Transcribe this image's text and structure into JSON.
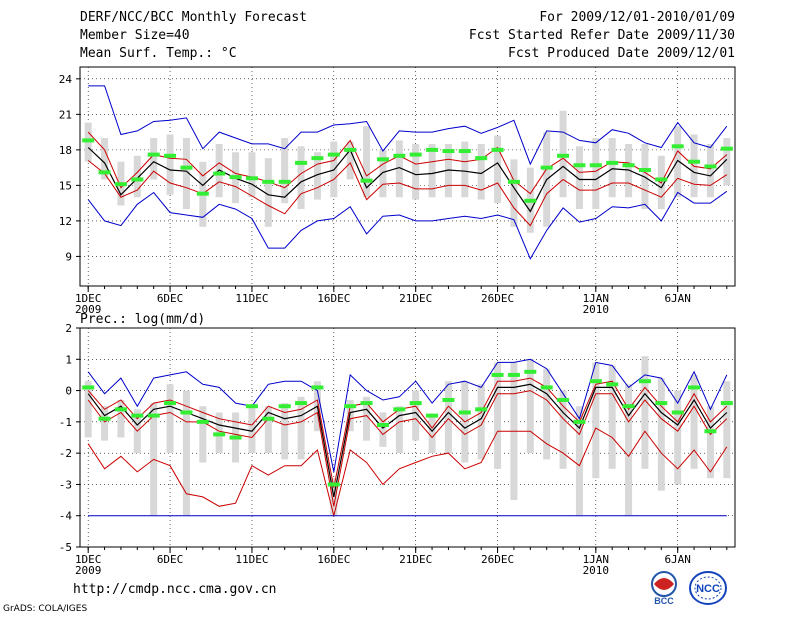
{
  "header": {
    "title": "DERF/NCC/BCC Monthly Forecast",
    "member_size": "Member Size=40",
    "variable": "Mean Surf. Temp.: °C",
    "period": "For 2009/12/01-2010/01/09",
    "start_date": "Fcst Started Refer Date 2009/11/30",
    "produced_date": "Fcst Produced Date 2009/12/01"
  },
  "footer": {
    "url": "http://cmdp.ncc.cma.gov.cn",
    "credit": "GrADS: COLA/IGES",
    "logo_bcc_text": "BCC",
    "logo_ncc_text": "NCC"
  },
  "colors": {
    "mean": "#000000",
    "spread": "#cc0000",
    "extreme": "#0000cc",
    "members": "#d8d8d8",
    "obs": "#33ee33",
    "grid": "#000000"
  },
  "chart_data": [
    {
      "type": "line",
      "title": "Mean Surf. Temp.: °C",
      "xlabel": "",
      "ylabel": "",
      "ylim": [
        6.5,
        25
      ],
      "yticks": [
        9,
        12,
        15,
        18,
        21,
        24
      ],
      "x": [
        1,
        2,
        3,
        4,
        5,
        6,
        7,
        8,
        9,
        10,
        11,
        12,
        13,
        14,
        15,
        16,
        17,
        18,
        19,
        20,
        21,
        22,
        23,
        24,
        25,
        26,
        27,
        28,
        29,
        30,
        31,
        32,
        33,
        34,
        35,
        36,
        37,
        38,
        39,
        40
      ],
      "xticks": [
        {
          "day": 1,
          "label": "1DEC",
          "sub": "2009"
        },
        {
          "day": 6,
          "label": "6DEC",
          "sub": ""
        },
        {
          "day": 11,
          "label": "11DEC",
          "sub": ""
        },
        {
          "day": 16,
          "label": "16DEC",
          "sub": ""
        },
        {
          "day": 21,
          "label": "21DEC",
          "sub": ""
        },
        {
          "day": 26,
          "label": "26DEC",
          "sub": ""
        },
        {
          "day": 32,
          "label": "1JAN",
          "sub": "2010"
        },
        {
          "day": 37,
          "label": "6JAN",
          "sub": ""
        }
      ],
      "series": [
        {
          "name": "max",
          "style": "extreme",
          "values": [
            23.4,
            23.4,
            19.3,
            19.6,
            20.4,
            20.5,
            20.7,
            18.1,
            19.5,
            19.0,
            18.5,
            18.5,
            18.1,
            19.5,
            19.5,
            20.1,
            20.2,
            20.4,
            17.9,
            19.6,
            19.5,
            19.5,
            19.8,
            20.0,
            19.4,
            19.9,
            20.5,
            16.8,
            19.6,
            19.5,
            18.8,
            18.6,
            19.7,
            19.4,
            18.6,
            18.2,
            20.3,
            18.6,
            18.2,
            20.0
          ]
        },
        {
          "name": "upper",
          "style": "spread",
          "values": [
            19.5,
            18.0,
            14.8,
            16.1,
            17.6,
            17.3,
            17.2,
            15.8,
            16.9,
            16.0,
            15.7,
            15.3,
            14.8,
            16.0,
            16.8,
            17.1,
            18.8,
            15.8,
            16.8,
            17.5,
            16.8,
            17.0,
            17.2,
            17.0,
            17.2,
            18.2,
            15.4,
            14.3,
            16.4,
            17.3,
            16.1,
            16.2,
            17.0,
            16.9,
            16.1,
            15.2,
            17.9,
            16.6,
            16.4,
            17.6
          ]
        },
        {
          "name": "mean",
          "style": "mean",
          "values": [
            18.2,
            16.9,
            14.2,
            15.6,
            17.0,
            16.3,
            16.2,
            15.0,
            16.3,
            15.6,
            15.1,
            14.2,
            14.0,
            15.3,
            15.9,
            16.3,
            18.0,
            14.8,
            16.1,
            16.5,
            15.9,
            16.0,
            16.3,
            16.2,
            16.0,
            16.9,
            14.8,
            12.8,
            15.5,
            16.6,
            15.5,
            15.5,
            16.4,
            16.3,
            15.7,
            14.8,
            17.1,
            16.1,
            15.8,
            17.2
          ]
        },
        {
          "name": "lower",
          "style": "spread",
          "values": [
            17.1,
            16.0,
            14.0,
            14.6,
            16.2,
            15.2,
            14.8,
            14.3,
            15.3,
            14.9,
            14.1,
            13.3,
            12.6,
            14.3,
            14.8,
            15.5,
            16.9,
            13.8,
            15.1,
            15.2,
            14.7,
            14.7,
            15.0,
            15.0,
            14.6,
            15.2,
            13.1,
            11.6,
            14.3,
            15.5,
            14.6,
            14.6,
            15.2,
            15.2,
            14.6,
            14.0,
            15.6,
            15.1,
            15.0,
            15.9
          ]
        },
        {
          "name": "min",
          "style": "extreme",
          "values": [
            13.8,
            12.0,
            11.6,
            13.4,
            14.4,
            12.7,
            12.5,
            12.3,
            13.4,
            13.0,
            12.2,
            9.7,
            9.7,
            11.2,
            12.0,
            12.2,
            13.2,
            10.9,
            12.4,
            12.5,
            12.0,
            12.0,
            12.2,
            12.4,
            12.2,
            12.5,
            12.1,
            8.8,
            11.2,
            13.1,
            11.9,
            12.2,
            13.2,
            13.1,
            13.4,
            12.0,
            14.4,
            13.5,
            13.5,
            14.5
          ]
        },
        {
          "name": "observed",
          "style": "obs",
          "values": [
            18.8,
            16.1,
            15.1,
            15.5,
            17.6,
            17.5,
            16.5,
            14.3,
            16.0,
            15.7,
            15.6,
            15.3,
            15.3,
            16.9,
            17.3,
            17.6,
            18.0,
            15.4,
            17.2,
            17.5,
            17.6,
            18.0,
            17.9,
            17.9,
            17.3,
            18.0,
            15.3,
            13.7,
            16.5,
            17.5,
            16.7,
            16.7,
            16.9,
            16.7,
            16.3,
            15.5,
            18.3,
            17.0,
            16.6,
            18.1
          ]
        },
        {
          "name": "member_box_high",
          "style": "members",
          "values": [
            20.3,
            19.0,
            17.0,
            17.5,
            19.0,
            19.3,
            19.0,
            17.0,
            18.5,
            17.8,
            17.8,
            17.3,
            19.0,
            18.3,
            17.8,
            18.7,
            18.7,
            20.0,
            18.0,
            18.8,
            18.5,
            18.5,
            18.5,
            18.7,
            18.5,
            19.2,
            17.2,
            16.5,
            19.5,
            21.3,
            18.3,
            19.0,
            19.0,
            18.5,
            18.5,
            17.5,
            20.0,
            19.3,
            18.5,
            19.0
          ]
        },
        {
          "name": "member_box_low",
          "style": "members",
          "values": [
            17.0,
            15.5,
            13.3,
            14.0,
            15.5,
            14.2,
            13.0,
            11.5,
            14.0,
            13.5,
            14.0,
            11.5,
            13.5,
            13.0,
            13.8,
            14.0,
            15.5,
            14.0,
            14.0,
            14.0,
            13.8,
            14.0,
            14.0,
            14.0,
            13.8,
            13.5,
            11.5,
            11.0,
            11.5,
            14.0,
            13.0,
            13.0,
            14.0,
            14.0,
            13.0,
            13.0,
            14.0,
            14.0,
            14.0,
            15.0
          ]
        }
      ]
    },
    {
      "type": "line",
      "title": "Prec.: log(mm/d)",
      "xlabel": "",
      "ylabel": "",
      "ylim": [
        -5,
        2
      ],
      "yticks": [
        -5,
        -4,
        -3,
        -2,
        -1,
        0,
        1,
        2
      ],
      "x": [
        1,
        2,
        3,
        4,
        5,
        6,
        7,
        8,
        9,
        10,
        11,
        12,
        13,
        14,
        15,
        16,
        17,
        18,
        19,
        20,
        21,
        22,
        23,
        24,
        25,
        26,
        27,
        28,
        29,
        30,
        31,
        32,
        33,
        34,
        35,
        36,
        37,
        38,
        39,
        40
      ],
      "xticks": [
        {
          "day": 1,
          "label": "1DEC",
          "sub": "2009"
        },
        {
          "day": 6,
          "label": "6DEC",
          "sub": ""
        },
        {
          "day": 11,
          "label": "11DEC",
          "sub": ""
        },
        {
          "day": 16,
          "label": "16DEC",
          "sub": ""
        },
        {
          "day": 21,
          "label": "21DEC",
          "sub": ""
        },
        {
          "day": 26,
          "label": "26DEC",
          "sub": ""
        },
        {
          "day": 32,
          "label": "1JAN",
          "sub": "2010"
        },
        {
          "day": 37,
          "label": "6JAN",
          "sub": ""
        }
      ],
      "series": [
        {
          "name": "max",
          "style": "extreme",
          "values": [
            0.6,
            -0.1,
            0.4,
            -0.5,
            0.4,
            0.5,
            0.6,
            0.2,
            0.1,
            -0.4,
            -0.5,
            0.2,
            0.3,
            0.3,
            0.0,
            -2.6,
            0.5,
            0.0,
            -0.3,
            -0.2,
            0.3,
            -0.4,
            0.2,
            0.3,
            0.1,
            0.9,
            0.9,
            1.0,
            0.7,
            -0.1,
            -0.9,
            0.9,
            0.8,
            0.1,
            0.5,
            0.4,
            -0.4,
            0.6,
            -0.6,
            0.5
          ]
        },
        {
          "name": "upper",
          "style": "spread",
          "values": [
            0.0,
            -0.6,
            -0.3,
            -0.9,
            -0.4,
            -0.3,
            -0.5,
            -0.7,
            -0.9,
            -1.0,
            -1.1,
            -0.5,
            -0.7,
            -0.6,
            -0.3,
            -3.1,
            -0.5,
            -0.4,
            -1.0,
            -0.6,
            -0.5,
            -1.2,
            -0.5,
            -1.0,
            -0.7,
            0.3,
            0.3,
            0.4,
            0.1,
            -0.5,
            -1.0,
            0.2,
            0.3,
            -0.6,
            0.1,
            -0.5,
            -1.0,
            -0.1,
            -1.0,
            -0.5
          ]
        },
        {
          "name": "mean",
          "style": "mean",
          "values": [
            -0.1,
            -0.8,
            -0.5,
            -1.1,
            -0.6,
            -0.5,
            -0.7,
            -0.9,
            -1.1,
            -1.2,
            -1.3,
            -0.7,
            -0.9,
            -0.8,
            -0.5,
            -3.4,
            -0.7,
            -0.6,
            -1.2,
            -0.8,
            -0.7,
            -1.3,
            -0.7,
            -1.2,
            -0.9,
            0.1,
            0.1,
            0.2,
            -0.1,
            -0.7,
            -1.2,
            0.1,
            0.1,
            -0.8,
            -0.1,
            -0.7,
            -1.1,
            -0.3,
            -1.2,
            -0.7
          ]
        },
        {
          "name": "lower",
          "style": "spread",
          "values": [
            -0.3,
            -1.0,
            -0.7,
            -1.3,
            -0.8,
            -0.7,
            -1.0,
            -1.0,
            -1.3,
            -1.4,
            -1.5,
            -0.9,
            -1.1,
            -1.0,
            -0.7,
            -3.7,
            -0.9,
            -0.8,
            -1.4,
            -1.0,
            -0.9,
            -1.5,
            -0.9,
            -1.4,
            -1.1,
            -0.1,
            -0.1,
            0.0,
            -0.3,
            -0.9,
            -1.4,
            -0.1,
            -0.1,
            -1.0,
            -0.3,
            -0.9,
            -1.3,
            -0.5,
            -1.4,
            -0.9
          ]
        },
        {
          "name": "min",
          "style": "spread",
          "values": [
            -1.7,
            -2.5,
            -2.1,
            -2.6,
            -2.2,
            -2.4,
            -3.3,
            -3.4,
            -3.7,
            -3.6,
            -2.4,
            -2.7,
            -2.4,
            -2.4,
            -1.9,
            -4.0,
            -1.9,
            -2.3,
            -3.0,
            -2.5,
            -2.3,
            -2.1,
            -2.0,
            -2.5,
            -2.3,
            -1.3,
            -1.3,
            -1.3,
            -1.7,
            -2.0,
            -2.4,
            -1.2,
            -1.5,
            -2.1,
            -1.3,
            -2.0,
            -2.5,
            -1.9,
            -2.6,
            -1.8
          ]
        },
        {
          "name": "floor",
          "style": "extreme",
          "values": [
            -4,
            -4,
            -4,
            -4,
            -4,
            -4,
            -4,
            -4,
            -4,
            -4,
            -4,
            -4,
            -4,
            -4,
            -4,
            -4,
            -4,
            -4,
            -4,
            -4,
            -4,
            -4,
            -4,
            -4,
            -4,
            -4,
            -4,
            -4,
            -4,
            -4,
            -4,
            -4,
            -4,
            -4,
            -4,
            -4,
            -4,
            -4,
            -4,
            -4
          ]
        },
        {
          "name": "observed",
          "style": "obs",
          "values": [
            0.1,
            -0.9,
            -0.6,
            -0.8,
            -0.8,
            -0.4,
            -0.7,
            -1.0,
            -1.4,
            -1.5,
            -0.5,
            -0.9,
            -0.5,
            -0.4,
            0.1,
            -3.0,
            -0.5,
            -0.4,
            -1.1,
            -0.6,
            -0.4,
            -0.8,
            -0.3,
            -0.7,
            -0.6,
            0.5,
            0.5,
            0.6,
            0.1,
            -0.3,
            -1.0,
            0.3,
            0.2,
            -0.5,
            0.3,
            -0.4,
            -0.7,
            0.1,
            -1.3,
            -0.4
          ]
        },
        {
          "name": "member_box_high",
          "style": "members",
          "values": [
            0.3,
            -0.5,
            -0.3,
            -0.6,
            -0.4,
            0.2,
            0.0,
            -0.5,
            -0.7,
            -0.7,
            -0.5,
            -0.5,
            -0.4,
            -0.2,
            0.3,
            -2.8,
            -0.3,
            -0.2,
            -0.7,
            -0.5,
            0.0,
            -0.8,
            0.3,
            0.3,
            0.2,
            0.9,
            0.9,
            1.0,
            0.7,
            0.0,
            -0.5,
            0.9,
            0.8,
            0.2,
            1.1,
            0.4,
            0.0,
            0.5,
            -0.5,
            0.3
          ]
        },
        {
          "name": "member_box_low",
          "style": "members",
          "values": [
            -1.5,
            -1.6,
            -1.5,
            -2.0,
            -4.0,
            -2.0,
            -4.0,
            -2.3,
            -2.0,
            -2.3,
            -2.0,
            -2.0,
            -2.2,
            -2.2,
            -1.3,
            -4.0,
            -1.3,
            -1.6,
            -1.8,
            -2.0,
            -1.6,
            -2.0,
            -2.0,
            -2.3,
            -2.2,
            -2.5,
            -3.5,
            -2.0,
            -2.2,
            -2.5,
            -4.0,
            -2.8,
            -2.5,
            -4.0,
            -2.5,
            -3.2,
            -3.0,
            -2.5,
            -2.8,
            -2.8
          ]
        }
      ]
    }
  ]
}
